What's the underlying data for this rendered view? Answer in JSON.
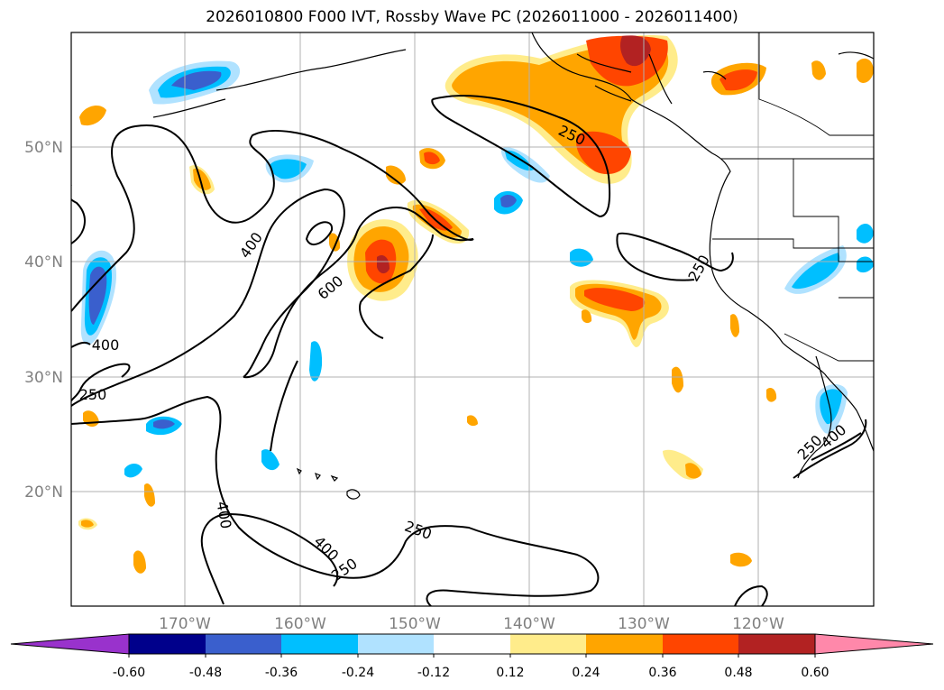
{
  "title": "2026010800 F000 IVT, Rossby Wave PC (2026011000 - 2026011400)",
  "lat_labels": [
    "50°N",
    "40°N",
    "30°N",
    "20°N"
  ],
  "lon_labels": [
    "170°W",
    "160°W",
    "150°W",
    "140°W",
    "130°W",
    "120°W"
  ],
  "contour_labels": [
    "250",
    "400",
    "600",
    "400",
    "250",
    "250",
    "400",
    "400",
    "250",
    "250",
    "250",
    "400"
  ],
  "colorbar": {
    "ticks": [
      "-0.60",
      "-0.48",
      "-0.36",
      "-0.24",
      "-0.12",
      "0.12",
      "0.24",
      "0.36",
      "0.48",
      "0.60"
    ],
    "colors": [
      "#9932cc",
      "#00008b",
      "#3a5fcd",
      "#00bfff",
      "#b0e2ff",
      "#ffffff",
      "#ffec8b",
      "#ffa500",
      "#ff4500",
      "#b22222",
      "#ff88aa"
    ]
  }
}
